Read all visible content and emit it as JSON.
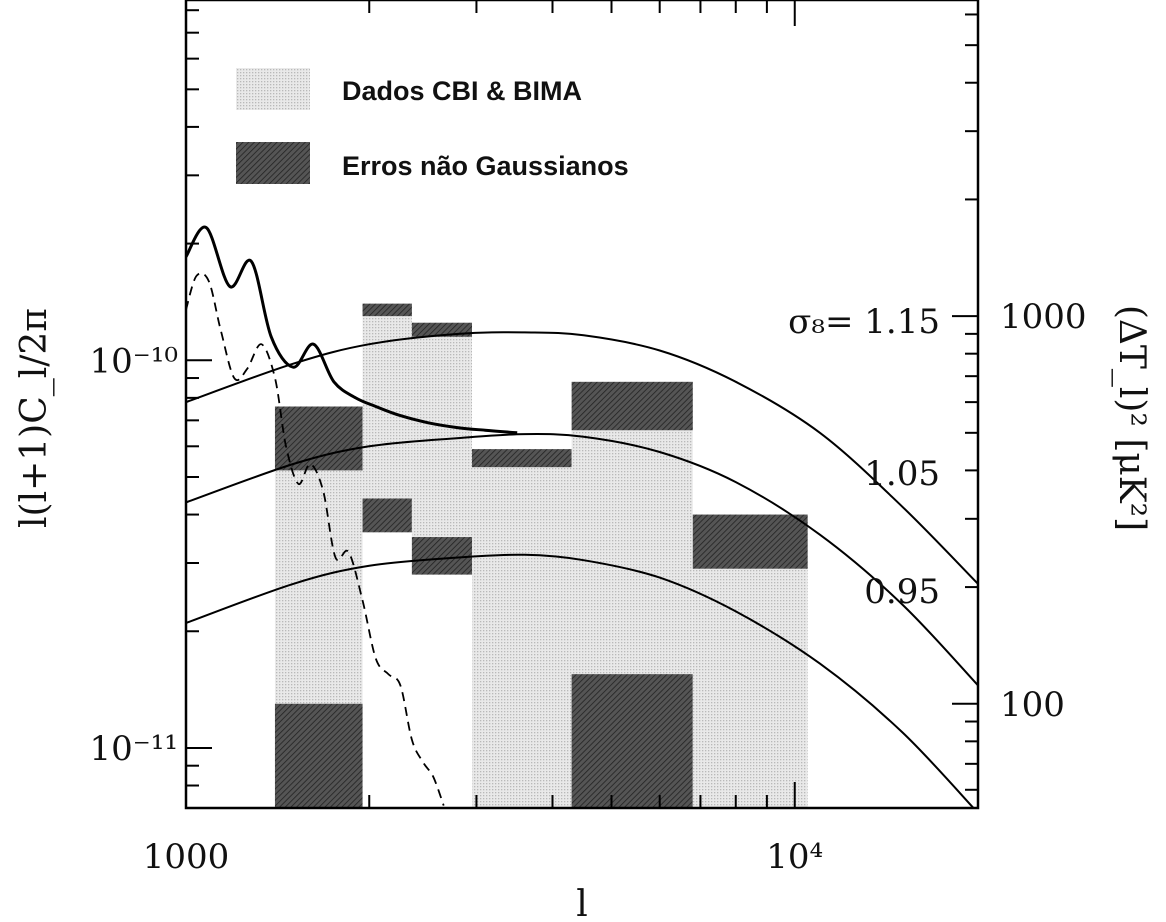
{
  "chart_data": {
    "type": "area",
    "xlabel": "l",
    "ylabel": "l(l+1)C_l/2π",
    "y2label": "(ΔT_l)² [μK²]",
    "xscale": "log",
    "yscale": "log",
    "xlim": [
      1000,
      20000
    ],
    "ylim": [
      7e-12,
      8.5e-10
    ],
    "x_ticks": [
      {
        "value": 1000,
        "label": "1000"
      },
      {
        "value": 10000,
        "label": "10⁴"
      }
    ],
    "y_ticks": [
      {
        "value": 1e-10,
        "label": "10⁻¹⁰"
      },
      {
        "value": 1e-11,
        "label": "10⁻¹¹"
      }
    ],
    "y2_ticks": [
      {
        "value": 1.3e-10,
        "label": "1000"
      },
      {
        "value": 1.3e-11,
        "label": "100"
      }
    ],
    "legend": {
      "position": "top-left",
      "entries": [
        {
          "label": "Dados CBI & BIMA",
          "style": "light-gray-dotted"
        },
        {
          "label": "Erros não Gaussianos",
          "style": "dark-gray-hatched"
        }
      ]
    },
    "data_bands": [
      {
        "x": [
          1400,
          1950
        ],
        "data": [
          7e-12,
          7.6e-11
        ],
        "ng": [
          5.2e-11,
          7.6e-11
        ],
        "ng2": [
          7e-12,
          1.3e-11
        ]
      },
      {
        "x": [
          1950,
          2350
        ],
        "data": [
          3.6e-11,
          1.4e-10
        ],
        "ng": [
          1.3e-10,
          1.4e-10
        ],
        "ng2": [
          3.6e-11,
          4.4e-11
        ]
      },
      {
        "x": [
          2350,
          2950
        ],
        "data": [
          2.8e-11,
          1.25e-10
        ],
        "ng": [
          1.15e-10,
          1.25e-10
        ],
        "ng2": [
          2.8e-11,
          3.5e-11
        ]
      },
      {
        "x": [
          2950,
          4300
        ],
        "data": [
          7e-12,
          5.9e-11
        ],
        "ng": [
          5.3e-11,
          5.9e-11
        ]
      },
      {
        "x": [
          4300,
          6800
        ],
        "data": [
          7e-12,
          6.6e-11
        ],
        "ng": [
          6.6e-11,
          8.8e-11
        ],
        "ng2": [
          7e-12,
          1.55e-11
        ]
      },
      {
        "x": [
          6800,
          10500
        ],
        "data": [
          7e-12,
          4e-11
        ],
        "ng": [
          2.9e-11,
          4e-11
        ]
      }
    ],
    "series": [
      {
        "name": "σ₈= 1.15",
        "style": "solid",
        "x": [
          1000,
          1500,
          2000,
          2800,
          3600,
          4500,
          6000,
          8000,
          11000,
          15000,
          20000
        ],
        "y": [
          7.8e-11,
          9.8e-11,
          1.1e-10,
          1.17e-10,
          1.18e-10,
          1.16e-10,
          1.06e-10,
          8.8e-11,
          6.5e-11,
          4.2e-11,
          2.65e-11
        ]
      },
      {
        "name": "1.05",
        "style": "solid",
        "x": [
          1000,
          1500,
          2000,
          2800,
          3600,
          4500,
          6000,
          8000,
          11000,
          15000,
          20000
        ],
        "y": [
          4.3e-11,
          5.4e-11,
          6e-11,
          6.3e-11,
          6.45e-11,
          6.35e-11,
          5.8e-11,
          4.85e-11,
          3.55e-11,
          2.35e-11,
          1.45e-11
        ]
      },
      {
        "name": "0.95",
        "style": "solid",
        "x": [
          1000,
          1500,
          2000,
          2800,
          3600,
          4500,
          6000,
          8000,
          11000,
          15000,
          20000
        ],
        "y": [
          2.1e-11,
          2.65e-11,
          2.95e-11,
          3.1e-11,
          3.15e-11,
          3.05e-11,
          2.75e-11,
          2.25e-11,
          1.65e-11,
          1.1e-11,
          6.8e-12
        ]
      },
      {
        "name": "",
        "style": "thick",
        "x": [
          1000,
          1080,
          1180,
          1280,
          1380,
          1500,
          1620,
          1750,
          1900,
          2050,
          2250,
          2500,
          2800,
          3100,
          3500
        ],
        "y": [
          1.85e-10,
          2.2e-10,
          1.55e-10,
          1.8e-10,
          1.15e-10,
          9.6e-11,
          1.1e-10,
          8.8e-11,
          8e-11,
          7.6e-11,
          7.2e-11,
          6.9e-11,
          6.7e-11,
          6.6e-11,
          6.5e-11
        ]
      },
      {
        "name": "",
        "style": "dashed",
        "x": [
          1000,
          1040,
          1090,
          1140,
          1200,
          1260,
          1330,
          1400,
          1460,
          1530,
          1600,
          1680,
          1760,
          1850,
          1950,
          2050,
          2150,
          2250,
          2350,
          2450,
          2550,
          2650
        ],
        "y": [
          1.35e-10,
          1.65e-10,
          1.6e-10,
          1.2e-10,
          9e-11,
          9.5e-11,
          1.1e-10,
          9e-11,
          6e-11,
          4.8e-11,
          5.4e-11,
          4.6e-11,
          3.1e-11,
          3.2e-11,
          2.4e-11,
          1.7e-11,
          1.55e-11,
          1.45e-11,
          1.05e-11,
          9.2e-12,
          8.4e-12,
          7.1e-12
        ]
      }
    ]
  }
}
